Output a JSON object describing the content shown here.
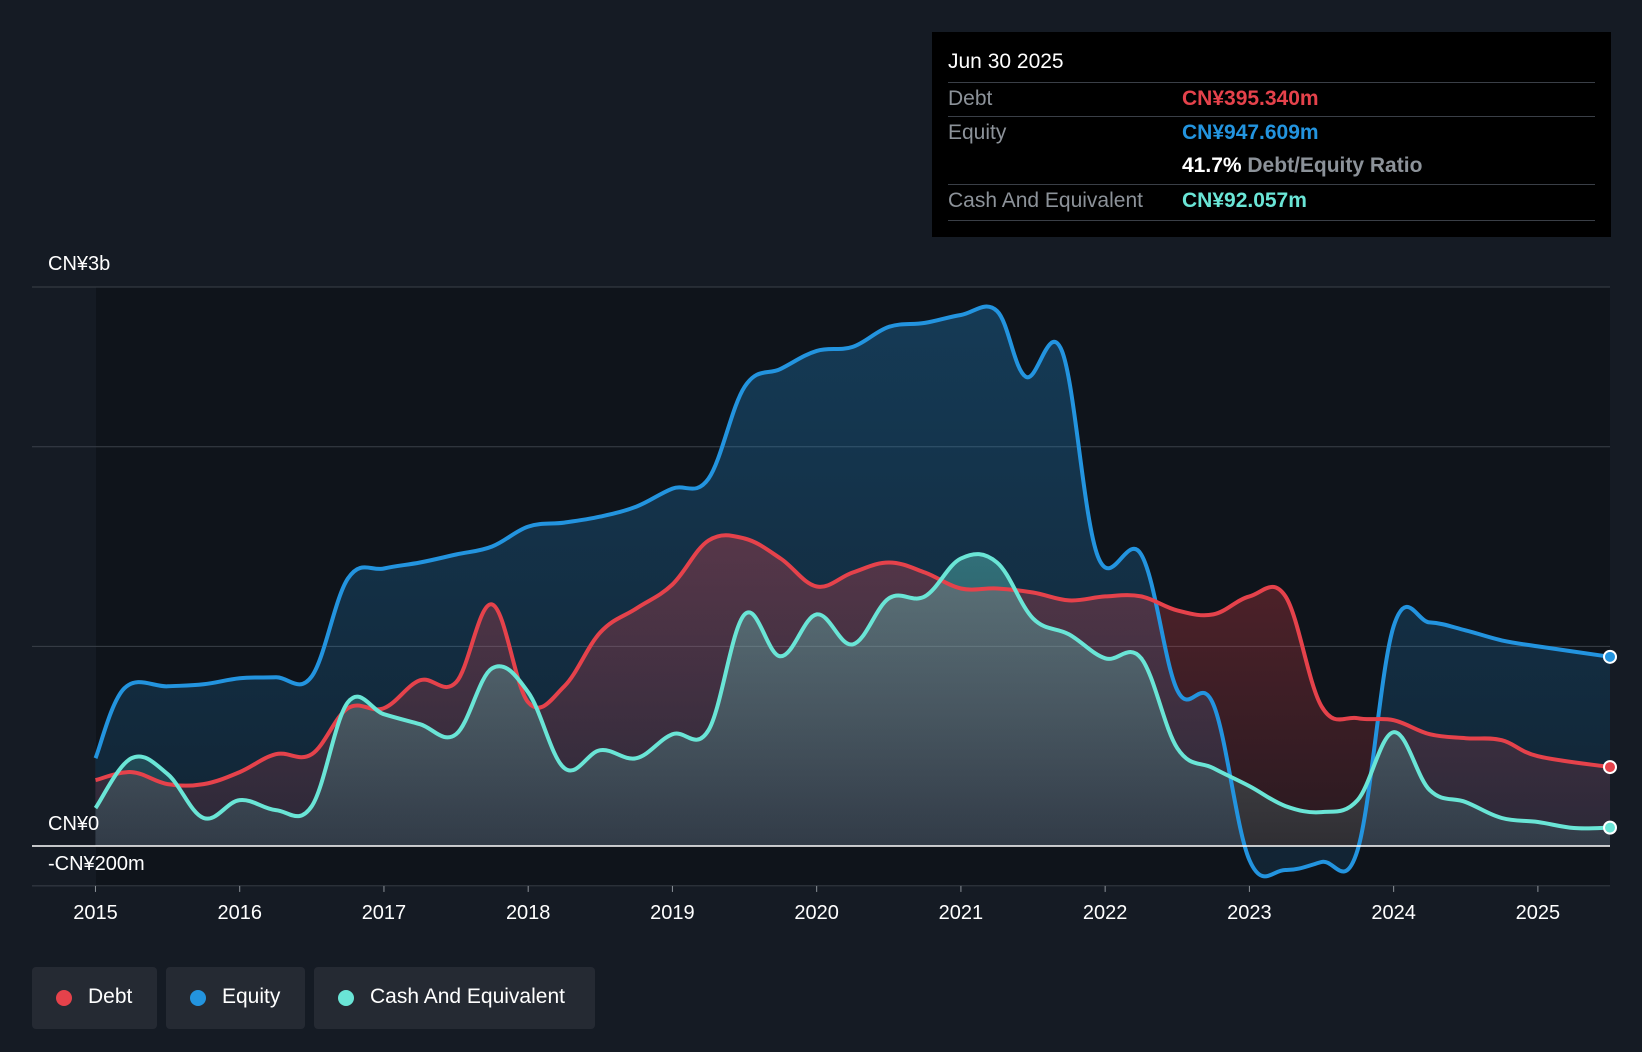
{
  "tooltip": {
    "date": "Jun 30 2025",
    "debt_label": "Debt",
    "debt_value": "CN¥395.340m",
    "equity_label": "Equity",
    "equity_value": "CN¥947.609m",
    "ratio_value": "41.7%",
    "ratio_label": "Debt/Equity Ratio",
    "cash_label": "Cash And Equivalent",
    "cash_value": "CN¥92.057m"
  },
  "legend": {
    "debt": "Debt",
    "equity": "Equity",
    "cash": "Cash And Equivalent"
  },
  "colors": {
    "debt": "#e5424b",
    "equity": "#2394df",
    "cash": "#6ae5d6",
    "background": "#151b24"
  },
  "chart_data": {
    "type": "area",
    "y_labels": {
      "top": "CN¥3b",
      "zero": "CN¥0",
      "bottom": "-CN¥200m"
    },
    "ylim": [
      -200,
      2800
    ],
    "x_ticks": [
      "2015",
      "2016",
      "2017",
      "2018",
      "2019",
      "2020",
      "2021",
      "2022",
      "2023",
      "2024",
      "2025"
    ],
    "x_range": [
      2014.56,
      2025.5
    ],
    "grid": true,
    "series": [
      {
        "name": "Equity",
        "points": [
          [
            2015.0,
            440
          ],
          [
            2015.2,
            790
          ],
          [
            2015.5,
            800
          ],
          [
            2015.75,
            810
          ],
          [
            2016.0,
            840
          ],
          [
            2016.25,
            845
          ],
          [
            2016.5,
            850
          ],
          [
            2016.75,
            1340
          ],
          [
            2017.0,
            1390
          ],
          [
            2017.25,
            1420
          ],
          [
            2017.5,
            1460
          ],
          [
            2017.75,
            1500
          ],
          [
            2018.0,
            1600
          ],
          [
            2018.25,
            1620
          ],
          [
            2018.5,
            1650
          ],
          [
            2018.75,
            1700
          ],
          [
            2019.0,
            1790
          ],
          [
            2019.25,
            1840
          ],
          [
            2019.5,
            2300
          ],
          [
            2019.75,
            2390
          ],
          [
            2020.0,
            2480
          ],
          [
            2020.25,
            2500
          ],
          [
            2020.5,
            2600
          ],
          [
            2020.75,
            2620
          ],
          [
            2021.0,
            2660
          ],
          [
            2021.25,
            2680
          ],
          [
            2021.45,
            2350
          ],
          [
            2021.7,
            2480
          ],
          [
            2021.95,
            1450
          ],
          [
            2022.25,
            1460
          ],
          [
            2022.5,
            780
          ],
          [
            2022.75,
            710
          ],
          [
            2023.0,
            -70
          ],
          [
            2023.25,
            -120
          ],
          [
            2023.5,
            -80
          ],
          [
            2023.75,
            -20
          ],
          [
            2024.0,
            1100
          ],
          [
            2024.25,
            1120
          ],
          [
            2024.5,
            1080
          ],
          [
            2024.75,
            1030
          ],
          [
            2025.0,
            1000
          ],
          [
            2025.5,
            947.609
          ]
        ]
      },
      {
        "name": "Debt",
        "points": [
          [
            2015.0,
            330
          ],
          [
            2015.25,
            370
          ],
          [
            2015.5,
            310
          ],
          [
            2015.75,
            310
          ],
          [
            2016.0,
            370
          ],
          [
            2016.25,
            460
          ],
          [
            2016.5,
            460
          ],
          [
            2016.75,
            690
          ],
          [
            2017.0,
            690
          ],
          [
            2017.25,
            830
          ],
          [
            2017.5,
            820
          ],
          [
            2017.75,
            1210
          ],
          [
            2018.0,
            720
          ],
          [
            2018.25,
            800
          ],
          [
            2018.5,
            1070
          ],
          [
            2018.75,
            1190
          ],
          [
            2019.0,
            1310
          ],
          [
            2019.25,
            1530
          ],
          [
            2019.5,
            1540
          ],
          [
            2019.75,
            1440
          ],
          [
            2020.0,
            1300
          ],
          [
            2020.25,
            1370
          ],
          [
            2020.5,
            1420
          ],
          [
            2020.75,
            1370
          ],
          [
            2021.0,
            1290
          ],
          [
            2021.25,
            1290
          ],
          [
            2021.5,
            1270
          ],
          [
            2021.75,
            1230
          ],
          [
            2022.0,
            1250
          ],
          [
            2022.25,
            1250
          ],
          [
            2022.5,
            1180
          ],
          [
            2022.75,
            1160
          ],
          [
            2023.0,
            1250
          ],
          [
            2023.25,
            1250
          ],
          [
            2023.5,
            700
          ],
          [
            2023.75,
            640
          ],
          [
            2024.0,
            630
          ],
          [
            2024.25,
            560
          ],
          [
            2024.5,
            540
          ],
          [
            2024.75,
            530
          ],
          [
            2025.0,
            450
          ],
          [
            2025.5,
            395.34
          ]
        ]
      },
      {
        "name": "Cash And Equivalent",
        "points": [
          [
            2015.0,
            190
          ],
          [
            2015.25,
            440
          ],
          [
            2015.5,
            360
          ],
          [
            2015.75,
            140
          ],
          [
            2016.0,
            230
          ],
          [
            2016.25,
            180
          ],
          [
            2016.5,
            200
          ],
          [
            2016.75,
            720
          ],
          [
            2017.0,
            660
          ],
          [
            2017.25,
            610
          ],
          [
            2017.5,
            560
          ],
          [
            2017.75,
            890
          ],
          [
            2018.0,
            770
          ],
          [
            2018.25,
            390
          ],
          [
            2018.5,
            480
          ],
          [
            2018.75,
            440
          ],
          [
            2019.0,
            560
          ],
          [
            2019.25,
            580
          ],
          [
            2019.5,
            1160
          ],
          [
            2019.75,
            950
          ],
          [
            2020.0,
            1160
          ],
          [
            2020.25,
            1010
          ],
          [
            2020.5,
            1240
          ],
          [
            2020.75,
            1250
          ],
          [
            2021.0,
            1440
          ],
          [
            2021.25,
            1420
          ],
          [
            2021.5,
            1140
          ],
          [
            2021.75,
            1060
          ],
          [
            2022.0,
            940
          ],
          [
            2022.25,
            940
          ],
          [
            2022.5,
            490
          ],
          [
            2022.75,
            390
          ],
          [
            2023.0,
            300
          ],
          [
            2023.25,
            200
          ],
          [
            2023.5,
            170
          ],
          [
            2023.75,
            230
          ],
          [
            2024.0,
            570
          ],
          [
            2024.25,
            280
          ],
          [
            2024.5,
            220
          ],
          [
            2024.75,
            140
          ],
          [
            2025.0,
            120
          ],
          [
            2025.25,
            90
          ],
          [
            2025.5,
            92.057
          ]
        ]
      }
    ]
  }
}
